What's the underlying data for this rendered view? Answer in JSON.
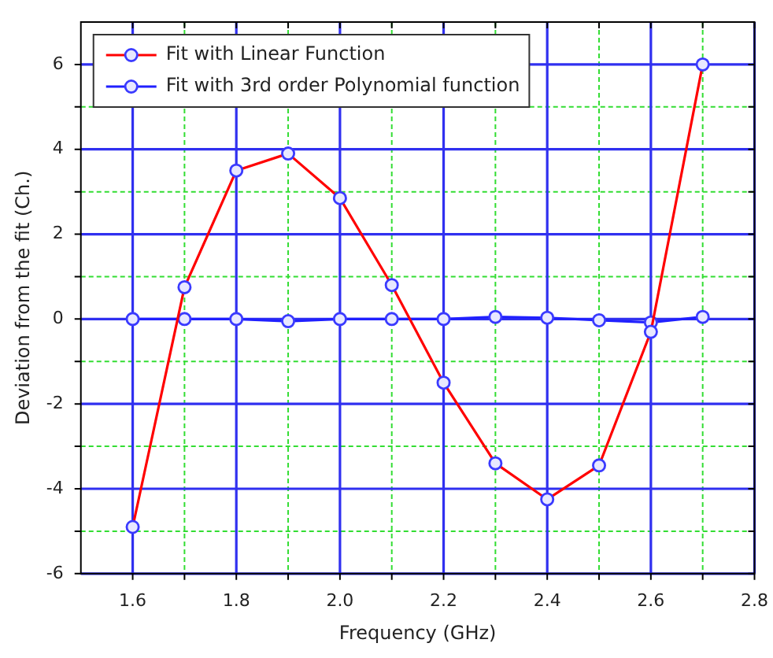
{
  "chart_data": {
    "type": "line",
    "xlabel": "Frequency (GHz)",
    "ylabel": "Deviation from the fit (Ch.)",
    "x": [
      1.6,
      1.7,
      1.8,
      1.9,
      2.0,
      2.1,
      2.2,
      2.3,
      2.4,
      2.5,
      2.6,
      2.7
    ],
    "series": [
      {
        "name": "Fit with Linear Function",
        "color": "#ff0000",
        "values": [
          -4.9,
          0.75,
          3.5,
          3.9,
          2.85,
          0.8,
          -1.5,
          -3.4,
          -4.25,
          -3.45,
          -0.3,
          6.0
        ]
      },
      {
        "name": "Fit with 3rd order Polynomial function",
        "color": "#2020ff",
        "values": [
          0,
          0,
          0,
          -0.05,
          0,
          0,
          0,
          0.05,
          0.03,
          -0.03,
          -0.08,
          0.05
        ]
      }
    ],
    "xlim": [
      1.5,
      2.8
    ],
    "xticks": [
      1.6,
      {
        "value": 1.7,
        "label": null
      },
      1.8,
      {
        "value": 1.9,
        "label": null
      },
      {
        "value": 2,
        "label": "2.0"
      },
      {
        "value": 2.1,
        "label": null
      },
      2.2,
      {
        "value": 2.3,
        "label": null
      },
      2.4,
      {
        "value": 2.5,
        "label": null
      },
      2.6,
      {
        "value": 2.7,
        "label": null
      },
      2.8
    ],
    "ylim": [
      -6,
      7
    ],
    "yticks": [
      -6,
      {
        "value": -5,
        "label": null
      },
      -4,
      {
        "value": -3,
        "label": null
      },
      -2,
      {
        "value": -1,
        "label": null
      },
      0,
      {
        "value": 1,
        "label": null
      },
      2,
      {
        "value": 3,
        "label": null
      },
      4,
      {
        "value": 5,
        "label": null
      },
      6
    ],
    "grid": true,
    "legend": "top left",
    "marker": "circle",
    "line_style": "solid"
  }
}
